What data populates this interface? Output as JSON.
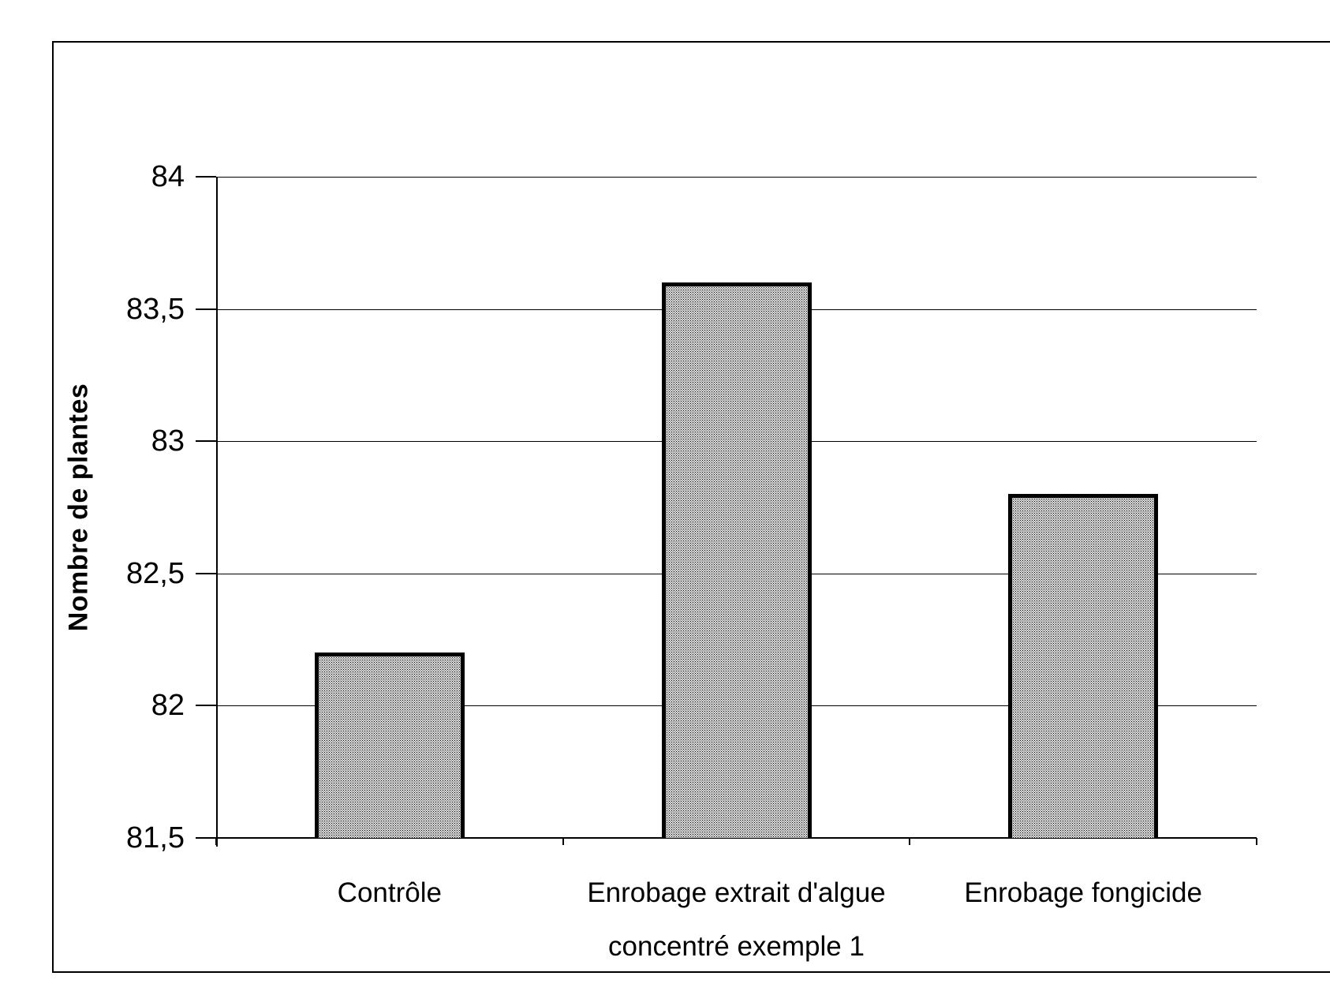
{
  "figure": {
    "background": "#ffffff",
    "line_color": "#000000",
    "text_color": "#000000"
  },
  "chart_data": {
    "type": "bar",
    "title": "",
    "categories": [
      "Contrôle",
      "Enrobage extrait d'algue concentré exemple 1",
      "Enrobage fongicide"
    ],
    "category_lines": [
      [
        "Contrôle"
      ],
      [
        "Enrobage extrait d'algue",
        "concentré exemple 1"
      ],
      [
        "Enrobage fongicide"
      ]
    ],
    "values": [
      82.2,
      83.6,
      82.8
    ],
    "xlabel": "",
    "ylabel": "Nombre de plantes",
    "ylim": [
      81.5,
      84
    ],
    "ytick_step": 0.5,
    "ytick_labels": [
      "81,5",
      "82",
      "82,5",
      "83",
      "83,5",
      "84"
    ],
    "grid": "horizontal",
    "legend": "none",
    "bar_fill": "stipple-gray",
    "bar_fill_base_color": "#dcdcdc",
    "bar_border_color": "#000000"
  }
}
